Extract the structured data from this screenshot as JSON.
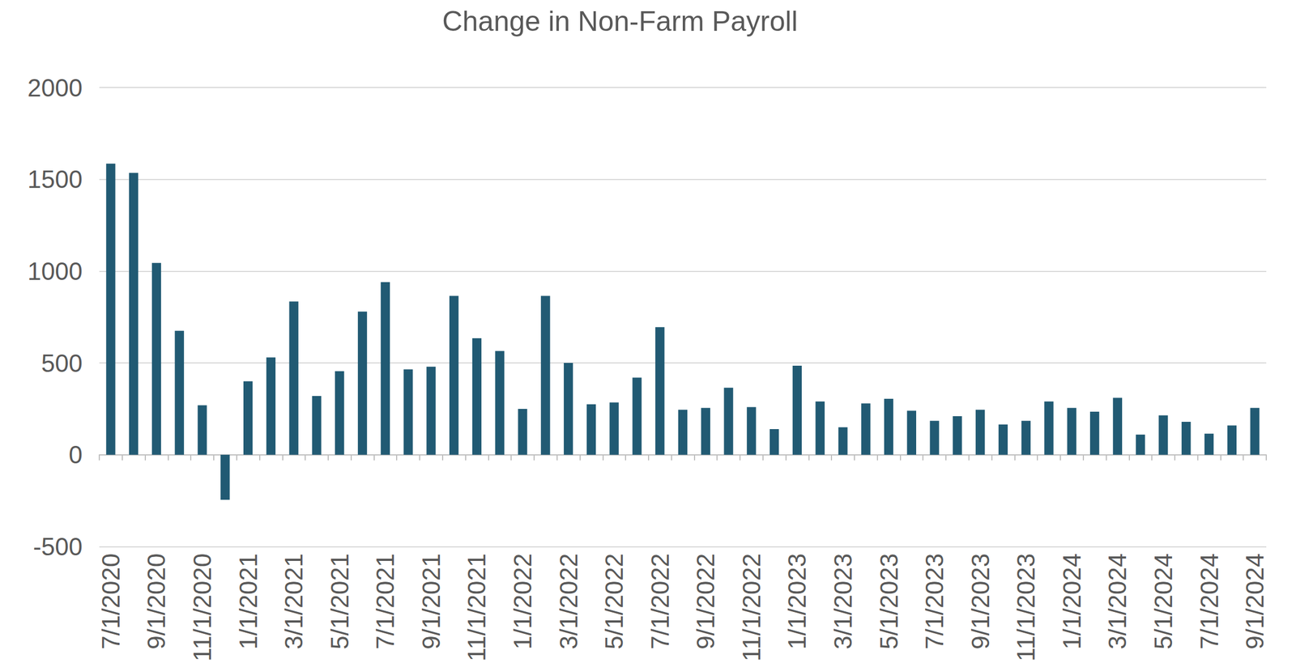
{
  "chart_data": {
    "type": "bar",
    "title": "Change in Non-Farm Payroll",
    "categories": [
      "7/1/2020",
      null,
      "9/1/2020",
      null,
      "11/1/2020",
      null,
      "1/1/2021",
      null,
      "3/1/2021",
      null,
      "5/1/2021",
      null,
      "7/1/2021",
      null,
      "9/1/2021",
      null,
      "11/1/2021",
      null,
      "1/1/2022",
      null,
      "3/1/2022",
      null,
      "5/1/2022",
      null,
      "7/1/2022",
      null,
      "9/1/2022",
      null,
      "11/1/2022",
      null,
      "1/1/2023",
      null,
      "3/1/2023",
      null,
      "5/1/2023",
      null,
      "7/1/2023",
      null,
      "9/1/2023",
      null,
      "11/1/2023",
      null,
      "1/1/2024",
      null,
      "3/1/2024",
      null,
      "5/1/2024",
      null,
      "7/1/2024",
      null,
      "9/1/2024"
    ],
    "values": [
      1585,
      1535,
      1045,
      675,
      270,
      -245,
      400,
      530,
      835,
      320,
      455,
      780,
      940,
      465,
      480,
      865,
      635,
      565,
      250,
      865,
      500,
      275,
      285,
      420,
      695,
      245,
      255,
      365,
      260,
      140,
      485,
      290,
      150,
      280,
      305,
      240,
      185,
      210,
      245,
      165,
      185,
      290,
      255,
      235,
      310,
      110,
      215,
      180,
      115,
      160,
      255
    ],
    "color": "#215a73",
    "ylim": [
      -500,
      2000
    ],
    "yticks": [
      -500,
      0,
      500,
      1000,
      1500,
      2000
    ],
    "grid": true
  }
}
